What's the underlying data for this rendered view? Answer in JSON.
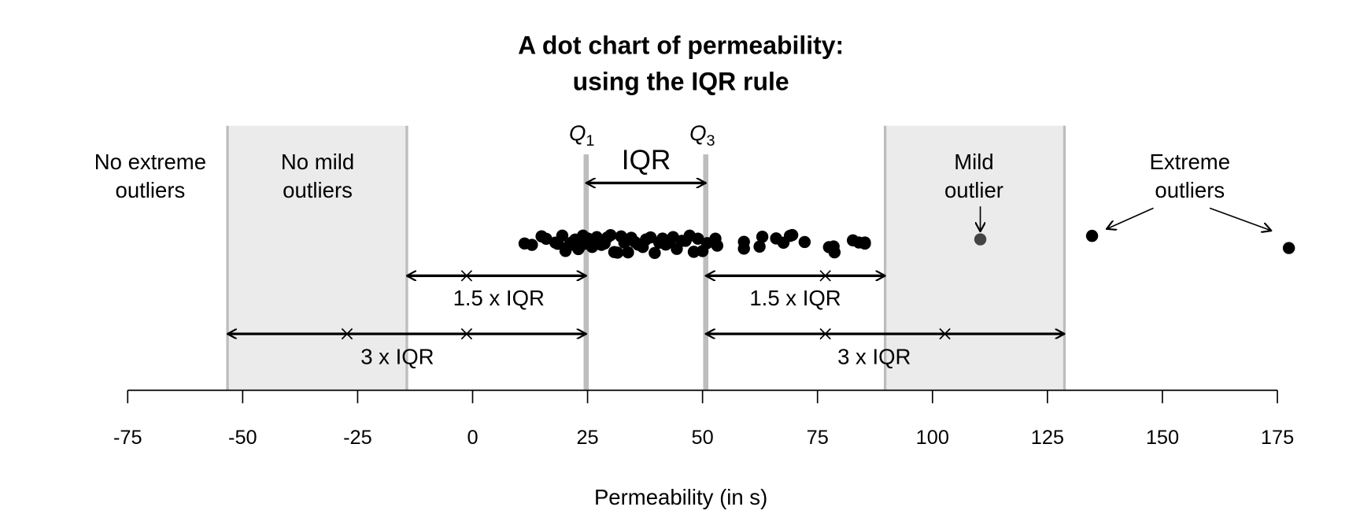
{
  "chart_data": {
    "type": "scatter",
    "title": [
      "A dot chart of permeability:",
      "using the IQR rule"
    ],
    "xlabel": "Permeability (in s)",
    "ylabel": "",
    "xlim": [
      -75,
      175
    ],
    "xticks": [
      -75,
      -50,
      -25,
      0,
      25,
      50,
      75,
      100,
      125,
      150,
      175
    ],
    "grid": false,
    "quartiles": {
      "Q1": 24.7,
      "Q3": 50.7,
      "IQR": 26.0
    },
    "fences": {
      "lower_mild": -14.3,
      "upper_mild": 89.7,
      "lower_extreme": -53.3,
      "upper_extreme": 128.7
    },
    "values": [
      11.3,
      12.9,
      15,
      16,
      18,
      18.5,
      19.5,
      20.2,
      21,
      21.7,
      22.3,
      23,
      23.3,
      24,
      24.5,
      25.1,
      26,
      27,
      28,
      28.7,
      29.3,
      30,
      30.8,
      31.5,
      32.3,
      33,
      33.8,
      34.5,
      35.3,
      36,
      37,
      37.7,
      38.7,
      39.6,
      40.6,
      41.3,
      42,
      42.9,
      43.6,
      44.4,
      45.5,
      46.3,
      47.2,
      48.1,
      49,
      50,
      51,
      52.8,
      53.2,
      59,
      59,
      62.4,
      63,
      66,
      67.6,
      69,
      69.5,
      72.2,
      77.5,
      78.5,
      78.7,
      82.7,
      84,
      85.3,
      85.3
    ],
    "mild_outliers": [
      110.4
    ],
    "extreme_outliers": [
      134.7,
      177.5
    ],
    "annotations": {
      "q1": "Q",
      "q1_sub": "1",
      "q3": "Q",
      "q3_sub": "3",
      "iqr": "IQR",
      "iqr15": "1.5 x IQR",
      "iqr3": "3 x IQR",
      "no_extreme": [
        "No extreme",
        "outliers"
      ],
      "no_mild": [
        "No mild",
        "outliers"
      ],
      "mild": [
        "Mild",
        "outlier"
      ],
      "extreme": [
        "Extreme",
        "outliers"
      ]
    },
    "colors": {
      "band": "#ebebeb",
      "band_line": "#bdbdbd",
      "dot": "#000000",
      "mild_dot": "#444444"
    }
  }
}
